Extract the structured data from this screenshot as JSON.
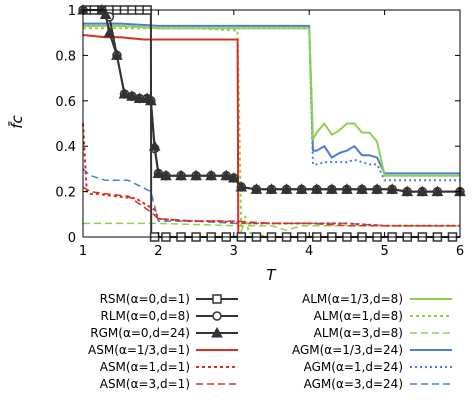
{
  "chart_data": {
    "type": "line",
    "xlabel": "T",
    "ylabel": "f̄c",
    "xlim": [
      1,
      6
    ],
    "ylim": [
      0,
      1
    ],
    "xticks": [
      "1",
      "2",
      "3",
      "4",
      "5",
      "6"
    ],
    "yticks": [
      "0",
      "0.2",
      "0.4",
      "0.6",
      "0.8",
      "1"
    ],
    "grid": false,
    "legend_placement": "bottom-outside",
    "series": [
      {
        "name": "RSM(α=0,d=1)",
        "color": "#333333",
        "dash": "",
        "width": 2,
        "marker": "square",
        "x": [
          1,
          1.9,
          1.905,
          6
        ],
        "y": [
          1,
          1,
          0,
          0
        ],
        "mx": [
          1.05,
          1.15,
          1.25,
          1.35,
          1.45,
          1.55,
          1.65,
          1.75,
          1.85,
          1.95,
          2.1,
          2.3,
          2.5,
          2.7,
          2.9,
          3.1,
          3.3,
          3.5,
          3.7,
          3.9,
          4.1,
          4.3,
          4.5,
          4.7,
          4.9,
          5.1,
          5.3,
          5.5,
          5.7,
          5.9
        ],
        "my": [
          1,
          1,
          1,
          1,
          1,
          1,
          1,
          1,
          1,
          0,
          0,
          0,
          0,
          0,
          0,
          0,
          0,
          0,
          0,
          0,
          0,
          0,
          0,
          0,
          0,
          0,
          0,
          0,
          0,
          0
        ]
      },
      {
        "name": "RLM(α=0,d=8)",
        "color": "#333333",
        "dash": "",
        "width": 2,
        "marker": "circle",
        "x": [
          1,
          1.25,
          1.35,
          1.45,
          1.55,
          1.65,
          1.75,
          1.85,
          1.9,
          1.95,
          2.0,
          2.1,
          2.3,
          2.5,
          2.7,
          2.9,
          3.0,
          3.1,
          3.3,
          3.5,
          3.7,
          3.9,
          4.1,
          4.3,
          4.5,
          4.7,
          4.9,
          5.1,
          5.3,
          5.5,
          5.7,
          6
        ],
        "y": [
          1,
          1,
          0.97,
          0.8,
          0.63,
          0.62,
          0.61,
          0.61,
          0.6,
          0.39,
          0.28,
          0.27,
          0.27,
          0.27,
          0.27,
          0.27,
          0.26,
          0.22,
          0.21,
          0.21,
          0.21,
          0.21,
          0.21,
          0.21,
          0.21,
          0.21,
          0.21,
          0.21,
          0.2,
          0.2,
          0.2,
          0.2
        ]
      },
      {
        "name": "RGM(α=0,d=24)",
        "color": "#333333",
        "dash": "",
        "width": 2,
        "marker": "triangle",
        "x": [
          1,
          1.25,
          1.3,
          1.35,
          1.45,
          1.55,
          1.65,
          1.75,
          1.85,
          1.9,
          1.95,
          2.0,
          2.1,
          2.3,
          2.5,
          2.7,
          2.9,
          3.0,
          3.1,
          3.3,
          3.5,
          3.7,
          3.9,
          4.1,
          4.3,
          4.5,
          4.7,
          4.9,
          5.1,
          5.3,
          5.5,
          5.7,
          6
        ],
        "y": [
          1,
          1,
          0.98,
          0.9,
          0.8,
          0.63,
          0.62,
          0.61,
          0.61,
          0.6,
          0.4,
          0.28,
          0.27,
          0.27,
          0.27,
          0.27,
          0.27,
          0.26,
          0.22,
          0.21,
          0.21,
          0.21,
          0.21,
          0.21,
          0.21,
          0.21,
          0.21,
          0.21,
          0.21,
          0.2,
          0.2,
          0.2,
          0.2
        ]
      },
      {
        "name": "ASM(α=1/3,d=1)",
        "color": "#d7301f",
        "dash": "",
        "width": 2,
        "marker": "",
        "x": [
          1,
          1.3,
          1.5,
          1.8,
          2.0,
          2.4,
          2.8,
          3.05,
          3.06,
          6
        ],
        "y": [
          0.89,
          0.88,
          0.88,
          0.87,
          0.87,
          0.87,
          0.87,
          0.87,
          0.0,
          0.0
        ]
      },
      {
        "name": "ASM(α=1,d=1)",
        "color": "#d7301f",
        "dash": "3,3",
        "width": 2,
        "marker": "",
        "x": [
          1,
          1.05,
          1.1,
          1.2,
          1.4,
          1.7,
          1.95,
          2.0,
          2.4,
          2.8,
          3.2,
          3.6,
          4.0,
          4.5,
          5.0,
          5.5,
          6
        ],
        "y": [
          0.5,
          0.2,
          0.19,
          0.19,
          0.18,
          0.17,
          0.12,
          0.08,
          0.07,
          0.07,
          0.06,
          0.06,
          0.06,
          0.06,
          0.05,
          0.05,
          0.05
        ]
      },
      {
        "name": "ASM(α=3,d=1)",
        "color": "#d7301f",
        "dash": "7,4",
        "width": 1.5,
        "marker": "",
        "x": [
          1,
          1.1,
          1.3,
          1.6,
          1.9,
          2.0,
          2.5,
          3.0,
          3.5,
          4.0,
          4.5,
          5.0,
          6
        ],
        "y": [
          0.22,
          0.2,
          0.19,
          0.18,
          0.11,
          0.08,
          0.07,
          0.07,
          0.06,
          0.06,
          0.05,
          0.05,
          0.05
        ]
      },
      {
        "name": "ALM(α=1/3,d=8)",
        "color": "#8fd14f",
        "dash": "",
        "width": 2,
        "marker": "",
        "x": [
          1,
          1.5,
          2.0,
          2.5,
          3.0,
          3.5,
          4.0,
          4.05,
          4.1,
          4.2,
          4.3,
          4.4,
          4.5,
          4.6,
          4.7,
          4.8,
          4.9,
          5.0,
          5.5,
          6
        ],
        "y": [
          0.93,
          0.93,
          0.92,
          0.92,
          0.92,
          0.92,
          0.92,
          0.43,
          0.46,
          0.5,
          0.45,
          0.47,
          0.5,
          0.5,
          0.46,
          0.46,
          0.42,
          0.27,
          0.27,
          0.27
        ]
      },
      {
        "name": "ALM(α=1,d=8)",
        "color": "#8fd14f",
        "dash": "3,3",
        "width": 2,
        "marker": "",
        "x": [
          1,
          1.5,
          2.0,
          2.5,
          3.0,
          3.05,
          3.1,
          3.15,
          3.2,
          3.3,
          3.5,
          4.0,
          4.5,
          5.0,
          6
        ],
        "y": [
          0.92,
          0.92,
          0.92,
          0.92,
          0.91,
          0.91,
          0.02,
          0.09,
          0.02,
          0.01,
          0.0,
          0.0,
          0.0,
          0.0,
          0.0
        ]
      },
      {
        "name": "ALM(α=3,d=8)",
        "color": "#8fd14f",
        "dash": "7,4",
        "width": 1.5,
        "marker": "",
        "x": [
          1,
          2.0,
          3.0,
          3.5,
          3.7,
          3.9,
          4.2,
          4.6,
          5.0,
          6
        ],
        "y": [
          0.06,
          0.06,
          0.05,
          0.05,
          0.03,
          0.05,
          0.05,
          0.05,
          0.05,
          0.05
        ]
      },
      {
        "name": "AGM(α=1/3,d=24)",
        "color": "#4a7fd4",
        "dash": "",
        "width": 2,
        "marker": "",
        "x": [
          1,
          1.5,
          2.0,
          2.5,
          3.0,
          3.5,
          4.0,
          4.05,
          4.1,
          4.2,
          4.3,
          4.4,
          4.5,
          4.6,
          4.7,
          4.8,
          4.9,
          5.0,
          5.5,
          6
        ],
        "y": [
          0.94,
          0.94,
          0.93,
          0.93,
          0.93,
          0.93,
          0.93,
          0.38,
          0.38,
          0.4,
          0.35,
          0.37,
          0.38,
          0.4,
          0.36,
          0.36,
          0.35,
          0.28,
          0.28,
          0.28
        ]
      },
      {
        "name": "AGM(α=1,d=24)",
        "color": "#4a7fd4",
        "dash": "2,3",
        "width": 2,
        "marker": "",
        "x": [
          1,
          1.5,
          2.0,
          2.5,
          3.0,
          3.5,
          4.0,
          4.05,
          4.1,
          4.2,
          4.3,
          4.4,
          4.5,
          4.6,
          4.7,
          4.8,
          4.9,
          5.0,
          5.5,
          6
        ],
        "y": [
          0.93,
          0.93,
          0.92,
          0.92,
          0.92,
          0.92,
          0.92,
          0.32,
          0.32,
          0.33,
          0.33,
          0.33,
          0.33,
          0.34,
          0.33,
          0.32,
          0.32,
          0.25,
          0.25,
          0.25
        ]
      },
      {
        "name": "AGM(α=3,d=24)",
        "color": "#4a7fd4",
        "dash": "7,4",
        "width": 1.5,
        "marker": "",
        "x": [
          1,
          1.1,
          1.3,
          1.6,
          1.9,
          2.0,
          2.5,
          3.0,
          3.5,
          4.0,
          4.5,
          5.0,
          6
        ],
        "y": [
          0.3,
          0.27,
          0.25,
          0.25,
          0.2,
          0.07,
          0.07,
          0.06,
          0.06,
          0.06,
          0.06,
          0.05,
          0.05
        ]
      }
    ]
  }
}
